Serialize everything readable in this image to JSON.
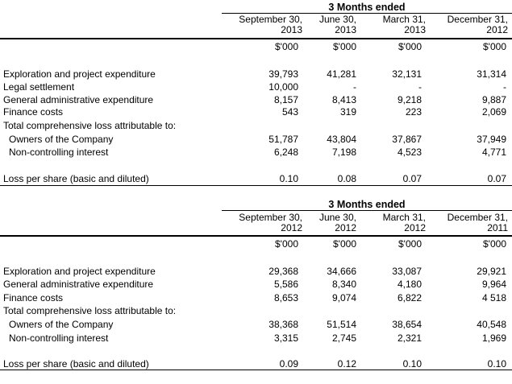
{
  "tables": [
    {
      "period_title": "3 Months ended",
      "columns": [
        {
          "line1": "September 30,",
          "line2": "2013",
          "unit": "$'000"
        },
        {
          "line1": "June 30,",
          "line2": "2013",
          "unit": "$'000"
        },
        {
          "line1": "March 31,",
          "line2": "2013",
          "unit": "$'000"
        },
        {
          "line1": "December 31,",
          "line2": "2012",
          "unit": "$'000"
        }
      ],
      "rows": [
        {
          "label": "Exploration and project expenditure",
          "values": [
            "39,793",
            "41,281",
            "32,131",
            "31,314"
          ]
        },
        {
          "label": "Legal settlement",
          "values": [
            "10,000",
            "-",
            "-",
            "-"
          ]
        },
        {
          "label": "General administrative expenditure",
          "values": [
            "8,157",
            "8,413",
            "9,218",
            "9,887"
          ]
        },
        {
          "label": "Finance costs",
          "values": [
            "543",
            "319",
            "223",
            "2,069"
          ]
        },
        {
          "label": "Total comprehensive loss attributable to:",
          "values": [
            "",
            "",
            "",
            ""
          ]
        },
        {
          "label": "Owners of the Company",
          "values": [
            "51,787",
            "43,804",
            "37,867",
            "37,949"
          ]
        },
        {
          "label": "Non-controlling interest",
          "values": [
            "6,248",
            "7,198",
            "4,523",
            "4,771"
          ]
        },
        {
          "label": "Loss per share (basic and diluted)",
          "values": [
            "0.10",
            "0.08",
            "0.07",
            "0.07"
          ]
        }
      ]
    },
    {
      "period_title": "3 Months ended",
      "columns": [
        {
          "line1": "September 30,",
          "line2": "2012",
          "unit": "$'000"
        },
        {
          "line1": "June 30,",
          "line2": "2012",
          "unit": "$'000"
        },
        {
          "line1": "March 31,",
          "line2": "2012",
          "unit": "$'000"
        },
        {
          "line1": "December 31,",
          "line2": "2011",
          "unit": "$'000"
        }
      ],
      "rows": [
        {
          "label": "Exploration and project expenditure",
          "values": [
            "29,368",
            "34,666",
            "33,087",
            "29,921"
          ]
        },
        {
          "label": "General administrative expenditure",
          "values": [
            "5,586",
            "8,340",
            "4,180",
            "9,964"
          ]
        },
        {
          "label": "Finance costs",
          "values": [
            "8,653",
            "9,074",
            "6,822",
            "4 518"
          ]
        },
        {
          "label": "Total comprehensive loss attributable to:",
          "values": [
            "",
            "",
            "",
            ""
          ]
        },
        {
          "label": "Owners of the Company",
          "values": [
            "38,368",
            "51,514",
            "38,654",
            "40,548"
          ]
        },
        {
          "label": "Non-controlling interest",
          "values": [
            "3,315",
            "2,745",
            "2,321",
            "1,969"
          ]
        },
        {
          "label": "Loss per share (basic and diluted)",
          "values": [
            "0.09",
            "0.12",
            "0.10",
            "0.10"
          ]
        }
      ]
    }
  ]
}
